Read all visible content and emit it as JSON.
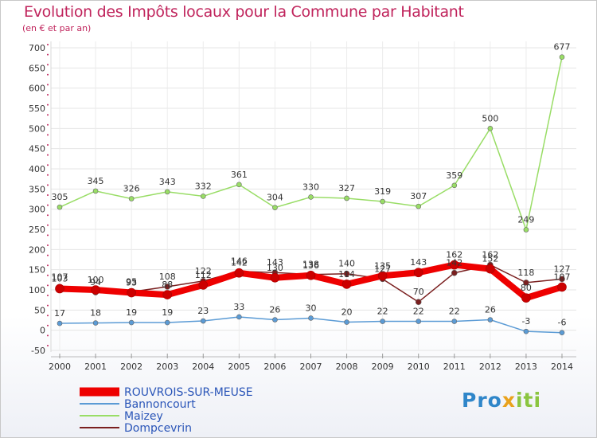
{
  "title": "Evolution des Impôts locaux pour la Commune par Habitant",
  "subtitle": "(en € et par an)",
  "logo": {
    "p1": "Pro",
    "p2": "x",
    "p3": "iti"
  },
  "chart_data": {
    "type": "line",
    "x": [
      "2000",
      "2001",
      "2002",
      "2003",
      "2004",
      "2005",
      "2006",
      "2007",
      "2008",
      "2009",
      "2010",
      "2011",
      "2012",
      "2013",
      "2014"
    ],
    "ylim": [
      -50,
      700
    ],
    "yticks": [
      -50,
      0,
      50,
      100,
      150,
      200,
      250,
      300,
      350,
      400,
      450,
      500,
      550,
      600,
      650,
      700
    ],
    "grid": true,
    "series": [
      {
        "name": "ROUVROIS-SUR-MEUSE",
        "color": "#ee0000",
        "values": [
          103,
          100,
          93,
          88,
          112,
          142,
          130,
          136,
          114,
          135,
          143,
          162,
          152,
          80,
          107
        ]
      },
      {
        "name": "Bannoncourt",
        "color": "#5b9bd5",
        "values": [
          17,
          18,
          19,
          19,
          23,
          33,
          26,
          30,
          20,
          22,
          22,
          22,
          26,
          -3,
          -6
        ]
      },
      {
        "name": "Maizey",
        "color": "#99dd66",
        "values": [
          305,
          345,
          326,
          343,
          332,
          361,
          304,
          330,
          327,
          319,
          307,
          359,
          500,
          249,
          677
        ]
      },
      {
        "name": "Dompcevrin",
        "color": "#7a1f1f",
        "values": [
          107,
          94,
          95,
          108,
          122,
          146,
          143,
          138,
          140,
          127,
          70,
          142,
          162,
          118,
          127
        ]
      }
    ]
  }
}
